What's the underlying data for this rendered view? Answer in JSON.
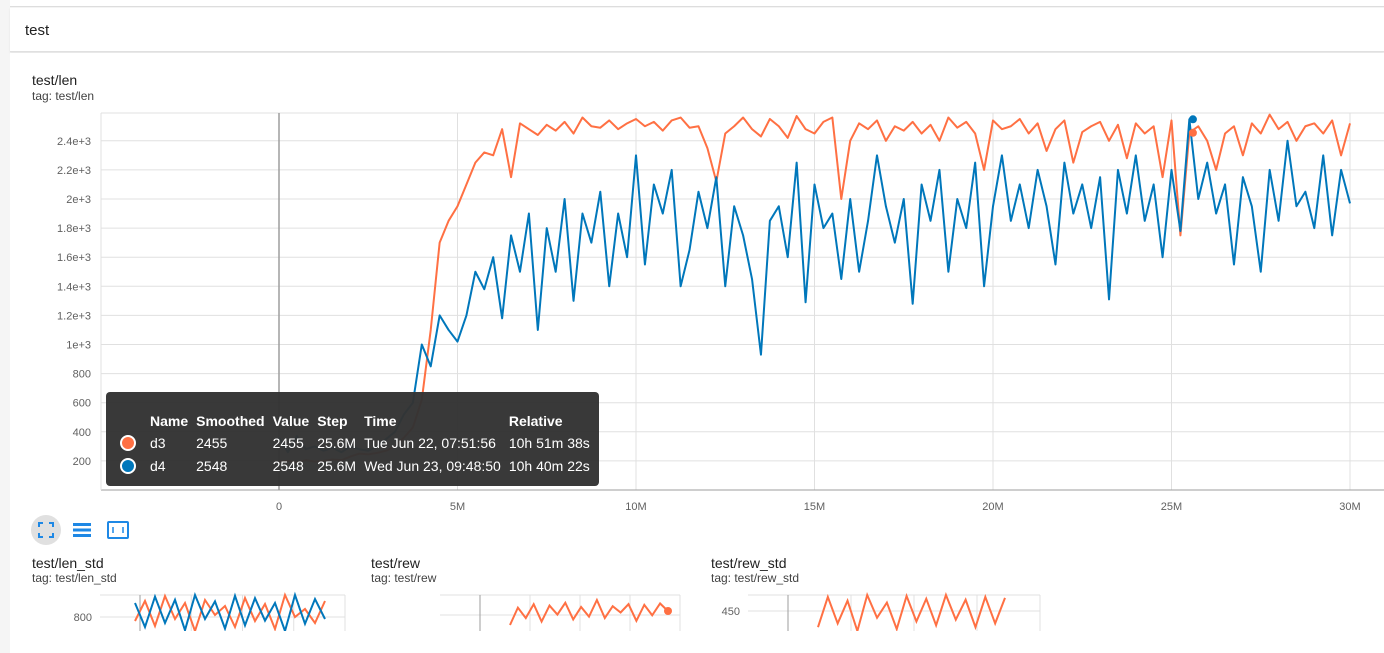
{
  "group": {
    "title": "test"
  },
  "main_chart": {
    "title": "test/len",
    "tag": "tag: test/len"
  },
  "chart_data": [
    {
      "type": "line",
      "title": "test/len",
      "x_unit": "M",
      "xlim": [
        -5,
        30.5
      ],
      "ylim": [
        0,
        2600
      ],
      "x_ticks": [
        0,
        5,
        10,
        15,
        20,
        25,
        30
      ],
      "x_tick_labels": [
        "0",
        "5M",
        "10M",
        "15M",
        "20M",
        "25M",
        "30M"
      ],
      "y_ticks": [
        200,
        400,
        600,
        800,
        1000,
        1200,
        1400,
        1600,
        1800,
        2000,
        2200,
        2400
      ],
      "y_tick_labels": [
        "200",
        "400",
        "600",
        "800",
        "1e+3",
        "1.2e+3",
        "1.4e+3",
        "1.6e+3",
        "1.8e+3",
        "2e+3",
        "2.2e+3",
        "2.4e+3"
      ],
      "grid": true,
      "hover_step": 25.6,
      "series": [
        {
          "name": "d3",
          "color": "#ff7043",
          "hover_value": 2455,
          "values": [
            195,
            200,
            190,
            205,
            195,
            200,
            210,
            205,
            230,
            250,
            245,
            255,
            270,
            300,
            360,
            430,
            620,
            1100,
            1700,
            1850,
            1950,
            2100,
            2250,
            2320,
            2300,
            2480,
            2150,
            2520,
            2480,
            2440,
            2510,
            2470,
            2530,
            2450,
            2560,
            2500,
            2490,
            2540,
            2480,
            2520,
            2550,
            2500,
            2530,
            2470,
            2540,
            2560,
            2490,
            2500,
            2350,
            2120,
            2450,
            2500,
            2560,
            2480,
            2430,
            2550,
            2500,
            2420,
            2570,
            2480,
            2450,
            2530,
            2560,
            2000,
            2400,
            2520,
            2480,
            2540,
            2400,
            2500,
            2470,
            2530,
            2450,
            2510,
            2400,
            2560,
            2490,
            2530,
            2450,
            2200,
            2540,
            2480,
            2500,
            2550,
            2450,
            2520,
            2330,
            2480,
            2540,
            2250,
            2460,
            2500,
            2530,
            2400,
            2510,
            2280,
            2520,
            2450,
            2500,
            2150,
            2540,
            1750,
            2455,
            2500,
            2400,
            2200,
            2450,
            2500,
            2300,
            2520,
            2450,
            2580,
            2480,
            2530,
            2400,
            2500,
            2520,
            2450,
            2540,
            2300,
            2520
          ]
        },
        {
          "name": "d4",
          "color": "#0077bb",
          "hover_value": 2548,
          "values": [
            360,
            260,
            370,
            280,
            300,
            270,
            290,
            260,
            300,
            280,
            270,
            300,
            350,
            400,
            520,
            600,
            1000,
            850,
            1200,
            1100,
            1020,
            1200,
            1500,
            1380,
            1600,
            1180,
            1750,
            1500,
            1900,
            1100,
            1800,
            1500,
            2000,
            1300,
            1900,
            1700,
            2050,
            1400,
            1900,
            1600,
            2300,
            1550,
            2100,
            1900,
            2200,
            1400,
            1650,
            2050,
            1800,
            2150,
            1400,
            1950,
            1750,
            1450,
            930,
            1850,
            1950,
            1600,
            2250,
            1290,
            2100,
            1800,
            1900,
            1450,
            2000,
            1500,
            1850,
            2300,
            1950,
            1700,
            2000,
            1280,
            2100,
            1850,
            2200,
            1500,
            2000,
            1800,
            2250,
            1400,
            1950,
            2300,
            1850,
            2100,
            1800,
            2200,
            1950,
            1550,
            2250,
            1900,
            2100,
            1800,
            2150,
            1310,
            2200,
            1900,
            2300,
            1850,
            2100,
            1600,
            2200,
            1780,
            2548,
            2000,
            2250,
            1900,
            2100,
            1550,
            2150,
            1950,
            1500,
            2200,
            1850,
            2400,
            1950,
            2050,
            1800,
            2300,
            1750,
            2200,
            1970
          ]
        }
      ]
    },
    {
      "type": "line",
      "title": "test/len_std",
      "y_tick_labels": [
        "800"
      ],
      "series": [
        {
          "name": "d3",
          "color": "#ff7043",
          "values": [
            700,
            900,
            650,
            950,
            720,
            880,
            600,
            910,
            760,
            850,
            640,
            930,
            700,
            870,
            620,
            960,
            740,
            820,
            680,
            900
          ]
        },
        {
          "name": "d4",
          "color": "#0077bb",
          "values": [
            900,
            600,
            980,
            650,
            940,
            560,
            1000,
            700,
            920,
            580,
            990,
            620,
            960,
            680,
            900,
            550,
            1000,
            640,
            950,
            700
          ]
        }
      ]
    },
    {
      "type": "line",
      "title": "test/rew",
      "y_tick_labels": [],
      "series": [
        {
          "name": "d3",
          "color": "#ff7043",
          "values": [
            30,
            55,
            40,
            60,
            35,
            58,
            45,
            62,
            38,
            56,
            42,
            66,
            40,
            57,
            48,
            60,
            36,
            59,
            44,
            61,
            50
          ]
        }
      ]
    },
    {
      "type": "line",
      "title": "test/rew_std",
      "y_tick_labels": [
        "450"
      ],
      "series": [
        {
          "name": "d3",
          "color": "#ff7043",
          "values": [
            300,
            460,
            320,
            440,
            280,
            470,
            350,
            430,
            290,
            465,
            330,
            450,
            310,
            470,
            340,
            445,
            300,
            460,
            320,
            455
          ]
        }
      ]
    }
  ],
  "small_charts": [
    {
      "title": "test/len_std",
      "tag": "tag: test/len_std"
    },
    {
      "title": "test/rew",
      "tag": "tag: test/rew"
    },
    {
      "title": "test/rew_std",
      "tag": "tag: test/rew_std"
    }
  ],
  "toolbar": {
    "icons": [
      "fullscreen-icon",
      "toggle-log-scale-icon",
      "fit-domain-icon"
    ]
  },
  "tooltip": {
    "headers": [
      "Name",
      "Smoothed",
      "Value",
      "Step",
      "Time",
      "Relative"
    ],
    "rows": [
      {
        "color": "#ff7043",
        "name": "d3",
        "smoothed": "2455",
        "value": "2455",
        "step": "25.6M",
        "time": "Tue Jun 22, 07:51:56",
        "relative": "10h 51m 38s"
      },
      {
        "color": "#0077bb",
        "name": "d4",
        "smoothed": "2548",
        "value": "2548",
        "step": "25.6M",
        "time": "Wed Jun 23, 09:48:50",
        "relative": "10h 40m 22s"
      }
    ]
  }
}
